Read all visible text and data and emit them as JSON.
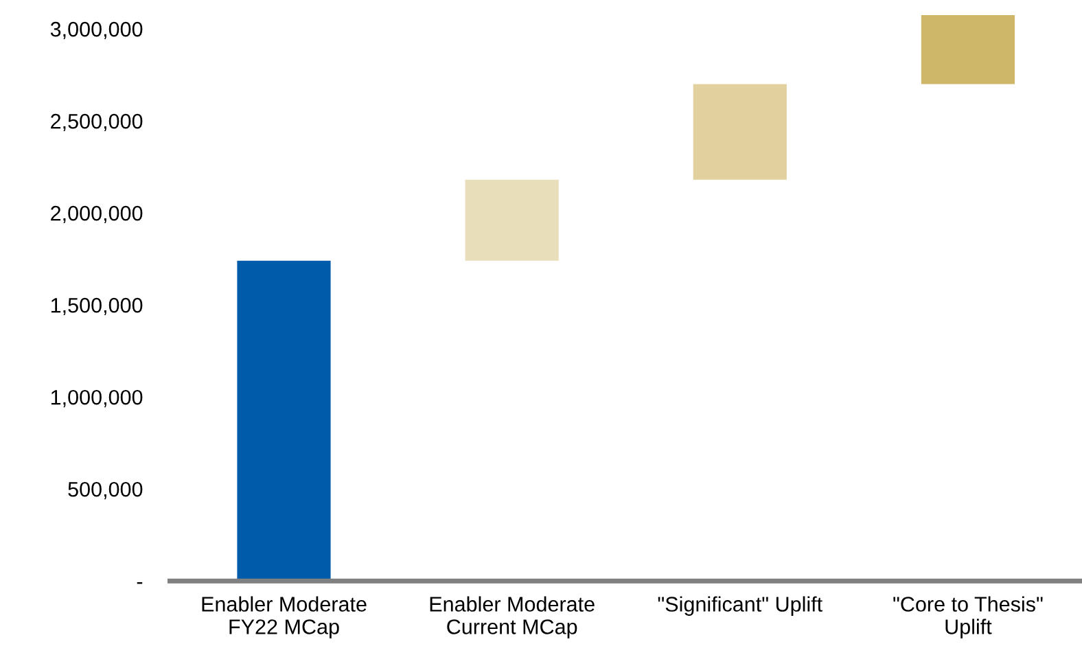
{
  "chart_data": {
    "type": "bar",
    "categories": [
      "Enabler Moderate\nFY22 MCap",
      "Enabler Moderate\nCurrent MCap",
      "\"Significant\" Uplift",
      "\"Core to Thesis\"\nUplift"
    ],
    "values": [
      1740000,
      440000,
      520000,
      375000
    ],
    "base": [
      0,
      1740000,
      2180000,
      2700000
    ],
    "colors": [
      "#005baa",
      "#e8deba",
      "#e2d19f",
      "#cfb76a"
    ],
    "ylim": [
      0,
      3100000
    ],
    "yticks": [
      {
        "value": 0,
        "label": "-"
      },
      {
        "value": 500000,
        "label": "500,000"
      },
      {
        "value": 1000000,
        "label": "1,000,000"
      },
      {
        "value": 1500000,
        "label": "1,500,000"
      },
      {
        "value": 2000000,
        "label": "2,000,000"
      },
      {
        "value": 2500000,
        "label": "2,500,000"
      },
      {
        "value": 3000000,
        "label": "3,000,000"
      }
    ],
    "grid": false,
    "legend": false
  }
}
